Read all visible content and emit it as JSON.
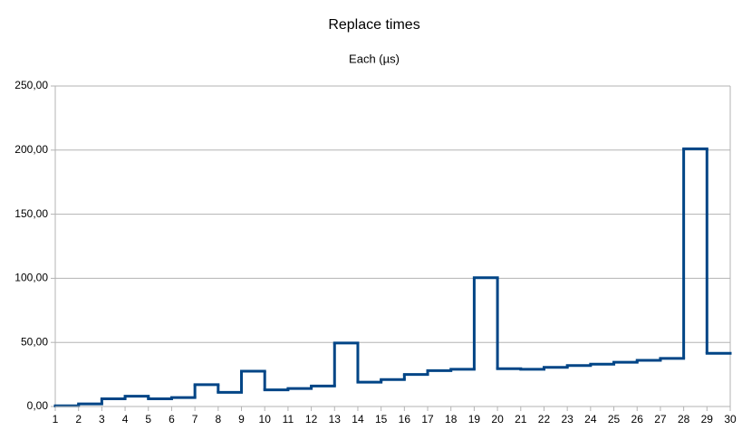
{
  "chart_data": {
    "type": "step",
    "title": "Replace times",
    "subtitle": "Each (µs)",
    "x": [
      1,
      2,
      3,
      4,
      5,
      6,
      7,
      8,
      9,
      10,
      11,
      12,
      13,
      14,
      15,
      16,
      17,
      18,
      19,
      20,
      21,
      22,
      23,
      24,
      25,
      26,
      27,
      28,
      29
    ],
    "series": [
      {
        "name": "Each",
        "color": "#004586",
        "values": [
          0.5,
          2,
          6,
          8,
          6,
          7,
          17,
          11,
          27.5,
          13,
          14,
          16,
          49.5,
          19,
          21,
          25,
          28,
          29,
          100.5,
          29.5,
          29,
          30.5,
          32,
          33,
          34.5,
          36,
          37.5,
          201,
          41.5
        ]
      }
    ],
    "xlim": [
      1,
      30
    ],
    "xticks": [
      1,
      2,
      3,
      4,
      5,
      6,
      7,
      8,
      9,
      10,
      11,
      12,
      13,
      14,
      15,
      16,
      17,
      18,
      19,
      20,
      21,
      22,
      23,
      24,
      25,
      26,
      27,
      28,
      29,
      30
    ],
    "ylim": [
      0,
      250
    ],
    "yticks": [
      {
        "value": 0,
        "label": "0,00"
      },
      {
        "value": 50,
        "label": "50,00"
      },
      {
        "value": 100,
        "label": "100,00"
      },
      {
        "value": 150,
        "label": "150,00"
      },
      {
        "value": 200,
        "label": "200,00"
      },
      {
        "value": 250,
        "label": "250,00"
      }
    ],
    "grid": true
  }
}
